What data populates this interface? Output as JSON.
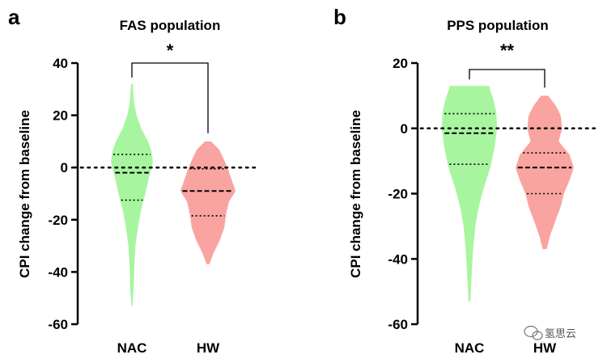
{
  "chart_data": [
    {
      "type": "violin",
      "panel": "a",
      "title": "FAS population",
      "ylabel": "CPI change from baseline",
      "xlabel": "",
      "ylim": [
        -60,
        40
      ],
      "yticks": [
        -60,
        -40,
        -20,
        0,
        20,
        40
      ],
      "reference_line_y": 0,
      "categories": [
        "NAC",
        "HW"
      ],
      "series": [
        {
          "name": "NAC",
          "color": "#a8f5a0",
          "min": -53,
          "max": 32,
          "quartiles": [
            -12.5,
            -2,
            5
          ],
          "density": [
            [
              -53,
              0.02
            ],
            [
              -46,
              0.06
            ],
            [
              -38,
              0.08
            ],
            [
              -30,
              0.12
            ],
            [
              -22,
              0.22
            ],
            [
              -16,
              0.32
            ],
            [
              -10,
              0.46
            ],
            [
              -4,
              0.58
            ],
            [
              2,
              0.72
            ],
            [
              6,
              0.68
            ],
            [
              10,
              0.55
            ],
            [
              15,
              0.32
            ],
            [
              20,
              0.16
            ],
            [
              25,
              0.07
            ],
            [
              29,
              0.05
            ],
            [
              32,
              0.03
            ]
          ]
        },
        {
          "name": "HW",
          "color": "#f9a4a0",
          "min": -37,
          "max": 10,
          "quartiles": [
            -18.5,
            -9,
            -0.5
          ],
          "density": [
            [
              -37,
              0.05
            ],
            [
              -33,
              0.18
            ],
            [
              -28,
              0.4
            ],
            [
              -23,
              0.56
            ],
            [
              -18,
              0.62
            ],
            [
              -13,
              0.72
            ],
            [
              -9,
              0.95
            ],
            [
              -5,
              0.82
            ],
            [
              -1,
              0.7
            ],
            [
              3,
              0.55
            ],
            [
              7,
              0.38
            ],
            [
              10,
              0.1
            ]
          ]
        }
      ],
      "significance": {
        "from": "NAC",
        "to": "HW",
        "label": "*"
      }
    },
    {
      "type": "violin",
      "panel": "b",
      "title": "PPS population",
      "ylabel": "CPI change from baseline",
      "xlabel": "",
      "ylim": [
        -60,
        20
      ],
      "yticks": [
        -60,
        -40,
        -20,
        0,
        20
      ],
      "reference_line_y": 0,
      "categories": [
        "NAC",
        "HW"
      ],
      "series": [
        {
          "name": "NAC",
          "color": "#a8f5a0",
          "min": -53,
          "max": 13,
          "quartiles": [
            -11,
            -1.5,
            4.5
          ],
          "density": [
            [
              -53,
              0.03
            ],
            [
              -46,
              0.07
            ],
            [
              -38,
              0.12
            ],
            [
              -30,
              0.2
            ],
            [
              -24,
              0.32
            ],
            [
              -18,
              0.5
            ],
            [
              -12,
              0.72
            ],
            [
              -6,
              0.86
            ],
            [
              0,
              0.95
            ],
            [
              5,
              0.92
            ],
            [
              9,
              0.82
            ],
            [
              12,
              0.7
            ],
            [
              13,
              0.68
            ]
          ]
        },
        {
          "name": "HW",
          "color": "#f9a4a0",
          "min": -37,
          "max": 10,
          "quartiles": [
            -20,
            -12,
            -7.5
          ],
          "density": [
            [
              -37,
              0.07
            ],
            [
              -33,
              0.18
            ],
            [
              -28,
              0.38
            ],
            [
              -24,
              0.55
            ],
            [
              -20,
              0.66
            ],
            [
              -16,
              0.85
            ],
            [
              -12,
              1.0
            ],
            [
              -8,
              0.85
            ],
            [
              -4,
              0.48
            ],
            [
              0,
              0.6
            ],
            [
              4,
              0.55
            ],
            [
              7,
              0.38
            ],
            [
              10,
              0.12
            ]
          ]
        }
      ],
      "significance": {
        "from": "NAC",
        "to": "HW",
        "label": "**"
      }
    }
  ],
  "watermark": {
    "text": "氢思云",
    "icon": "wechat-icon"
  }
}
